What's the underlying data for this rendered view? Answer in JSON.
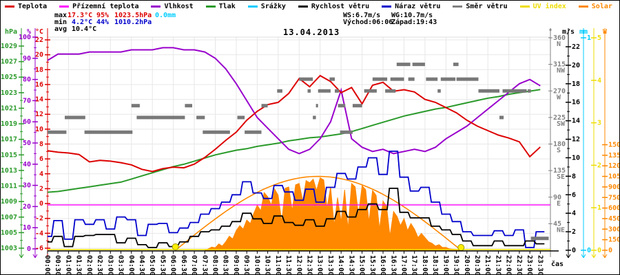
{
  "title": "13.04.2013",
  "xlabel": "čas",
  "legend": {
    "items": [
      {
        "label": "Teplota",
        "color": "#dd0000",
        "text_color": "#000000"
      },
      {
        "label": "Přízemní teplota",
        "color": "#ff00ff",
        "text_color": "#000000"
      },
      {
        "label": "Vlhkost",
        "color": "#9900cc",
        "text_color": "#000000"
      },
      {
        "label": "Tlak",
        "color": "#2a9a2a",
        "text_color": "#000000"
      },
      {
        "label": "Srážky",
        "color": "#00ccff",
        "text_color": "#000000"
      },
      {
        "label": "Rychlost větru",
        "color": "#000000",
        "text_color": "#000000"
      },
      {
        "label": "Náraz větru",
        "color": "#0000cc",
        "text_color": "#000000"
      },
      {
        "label": "Směr větru",
        "color": "#808080",
        "text_color": "#000000"
      },
      {
        "label": "UV index",
        "color": "#eedd00",
        "text_color": "#eedd00"
      },
      {
        "label": "Solar",
        "color": "#ff8800",
        "text_color": "#ff8800"
      }
    ]
  },
  "stats": {
    "max": {
      "label": "max",
      "temp": "17.3°C",
      "humidity": "95%",
      "pressure": "1023.5hPa",
      "rain": "0.0mm"
    },
    "min": {
      "label": "min",
      "temp": "4.2°C",
      "humidity": "44%",
      "pressure": "1010.2hPa"
    },
    "avg": {
      "label": "avg",
      "temp": "10.4°C"
    },
    "wind_max": {
      "ws": "WS:6.7m/s",
      "wg": "WG:10.7m/s"
    },
    "sun": {
      "sunrise": "Východ:06:06",
      "sunset": "Západ:19:43"
    },
    "colors": {
      "max": "#dd0000",
      "min": "#0000cc",
      "rain": "#00ccff",
      "label": "#000000"
    }
  },
  "axes": {
    "pressure": {
      "unit": "hPa",
      "color": "#2a9a2a",
      "ticks": [
        1029,
        1027,
        1025,
        1023,
        1021,
        1019,
        1017,
        1015,
        1013,
        1011,
        1009,
        1007,
        1005,
        1003
      ]
    },
    "humidity": {
      "unit": "%",
      "color": "#9900cc",
      "ticks": [
        100,
        90,
        80,
        70,
        60,
        50,
        40,
        30,
        20,
        10,
        0
      ]
    },
    "temperature": {
      "unit": "°C",
      "color": "#dd0000",
      "ticks": [
        22,
        20,
        18,
        16,
        14,
        12,
        10,
        8,
        6,
        4,
        2,
        0,
        -2,
        -4,
        -6
      ]
    },
    "wind_direction": {
      "unit": "°",
      "color": "#808080",
      "ticks": [
        {
          "deg": 360,
          "label": "N"
        },
        {
          "deg": 315,
          "label": "NW"
        },
        {
          "deg": 270,
          "label": "W"
        },
        {
          "deg": 225,
          "label": "SW"
        },
        {
          "deg": 180,
          "label": "S"
        },
        {
          "deg": 135,
          "label": "SE"
        },
        {
          "deg": 90,
          "label": "E"
        },
        {
          "deg": 45,
          "label": "NE"
        }
      ]
    },
    "wind_speed": {
      "unit": "m/s",
      "color": "#000000",
      "ticks": [
        22,
        20,
        18,
        16,
        14,
        12,
        10,
        8,
        6,
        4,
        2,
        0
      ]
    },
    "rain": {
      "unit": "mm",
      "color": "#00ccff",
      "ticks": [
        1,
        0
      ]
    },
    "uv": {
      "unit": "",
      "color": "#eedd00",
      "ticks": [
        5,
        4,
        3,
        2,
        1,
        0
      ]
    },
    "solar": {
      "unit": "W",
      "color": "#ff8800",
      "ticks": [
        1500,
        1350,
        1200,
        1050,
        900,
        750,
        600,
        450,
        300,
        150,
        0
      ]
    }
  },
  "chart_data": {
    "type": "line",
    "title": "13.04.2013",
    "xlabel": "čas",
    "x_step_h": 0.5,
    "x_ticks": [
      "00:00",
      "00:30",
      "01:00",
      "01:30",
      "02:00",
      "02:30",
      "03:00",
      "03:30",
      "04:00",
      "04:30",
      "05:00",
      "05:30",
      "06:00",
      "06:30",
      "07:00",
      "07:30",
      "08:00",
      "08:30",
      "09:00",
      "09:30",
      "10:00",
      "10:30",
      "11:00",
      "11:30",
      "12:00",
      "12:30",
      "13:00",
      "13:30",
      "14:00",
      "14:30",
      "15:00",
      "15:30",
      "16:00",
      "16:30",
      "17:00",
      "17:30",
      "18:00",
      "18:30",
      "19:00",
      "19:30",
      "20:00",
      "20:30",
      "21:00",
      "21:30",
      "22:00",
      "22:30",
      "23:00",
      "23:30"
    ],
    "series": [
      {
        "name": "Teplota",
        "unit": "°C",
        "axis": "temperature",
        "color": "#dd0000",
        "values": [
          7.1,
          6.9,
          6.8,
          6.6,
          5.6,
          5.8,
          5.7,
          5.5,
          5.2,
          4.6,
          4.3,
          4.7,
          4.9,
          4.8,
          5.3,
          6.2,
          7.3,
          8.5,
          9.6,
          11.2,
          12.4,
          13.3,
          13.6,
          14.8,
          16.8,
          15.7,
          17.2,
          16.4,
          14.9,
          15.6,
          13.4,
          15.9,
          16.3,
          15.1,
          15.3,
          15.0,
          14.0,
          13.6,
          12.9,
          12.2,
          11.2,
          10.4,
          9.8,
          9.2,
          8.8,
          8.3,
          6.3,
          7.6
        ]
      },
      {
        "name": "Přízemní teplota",
        "unit": "°C",
        "axis": "temperature",
        "color": "#ff00ff",
        "values_constant": 0.0
      },
      {
        "name": "Vlhkost",
        "unit": "%",
        "axis": "humidity",
        "color": "#9900cc",
        "values": [
          89,
          92,
          92,
          92,
          93,
          93,
          93,
          93,
          94,
          94,
          94,
          95,
          95,
          94,
          94,
          93,
          90,
          85,
          78,
          70,
          62,
          57,
          52,
          47,
          45,
          47,
          52,
          60,
          75,
          52,
          48,
          46,
          47,
          45,
          46,
          47,
          46,
          48,
          52,
          55,
          58,
          62,
          66,
          70,
          74,
          78,
          80,
          77
        ]
      },
      {
        "name": "Tlak",
        "unit": "hPa",
        "axis": "pressure",
        "color": "#2a9a2a",
        "values": [
          1010.2,
          1010.3,
          1010.5,
          1010.7,
          1010.9,
          1011.1,
          1011.3,
          1011.5,
          1011.9,
          1012.3,
          1012.7,
          1013.1,
          1013.5,
          1013.8,
          1014.2,
          1014.6,
          1015.0,
          1015.3,
          1015.6,
          1015.8,
          1016.1,
          1016.3,
          1016.5,
          1016.8,
          1017.0,
          1017.2,
          1017.3,
          1017.5,
          1017.7,
          1018.0,
          1018.4,
          1018.8,
          1019.2,
          1019.6,
          1020.0,
          1020.3,
          1020.6,
          1020.9,
          1021.1,
          1021.4,
          1021.7,
          1022.0,
          1022.3,
          1022.5,
          1022.8,
          1023.0,
          1023.2,
          1023.4
        ]
      },
      {
        "name": "Srážky",
        "unit": "mm",
        "axis": "rain",
        "color": "#00ccff",
        "values_constant": 0.0
      },
      {
        "name": "Rychlost větru",
        "unit": "m/s",
        "axis": "wind_speed",
        "color": "#000000",
        "values": [
          0.9,
          1.5,
          0.4,
          1.5,
          1.6,
          1.7,
          1.7,
          0.8,
          1.3,
          0.6,
          0.3,
          0.8,
          0.4,
          0.9,
          1.5,
          2.0,
          2.2,
          2.6,
          3.1,
          4.0,
          3.4,
          2.9,
          3.7,
          3.0,
          2.7,
          3.3,
          2.6,
          3.4,
          4.2,
          3.6,
          4.4,
          5.0,
          4.4,
          6.7,
          4.1,
          3.5,
          3.5,
          2.6,
          2.2,
          1.7,
          1.0,
          0.5,
          0.5,
          1.0,
          0.5,
          0.5,
          1.0,
          0.7
        ]
      },
      {
        "name": "Náraz větru",
        "unit": "m/s",
        "axis": "wind_speed",
        "color": "#0000cc",
        "values": [
          1.5,
          3.2,
          1.2,
          3.3,
          2.8,
          3.3,
          2.3,
          3.6,
          3.3,
          1.6,
          2.8,
          2.9,
          1.9,
          2.4,
          3.0,
          3.9,
          4.5,
          5.2,
          6.0,
          7.4,
          6.2,
          5.6,
          7.0,
          6.3,
          5.4,
          6.6,
          5.2,
          6.8,
          8.3,
          7.7,
          9.0,
          10.0,
          8.2,
          10.7,
          7.9,
          6.4,
          6.8,
          5.2,
          3.9,
          3.1,
          2.0,
          1.6,
          1.6,
          2.1,
          1.6,
          2.2,
          0.3,
          2.0
        ]
      },
      {
        "name": "UV index",
        "unit": "",
        "axis": "uv",
        "color": "#eedd00",
        "values_constant": 0.0
      },
      {
        "name": "Solar",
        "unit": "W",
        "axis": "solar",
        "color": "#ff8800",
        "points_10min": [
          [
            7.5,
            0
          ],
          [
            7.67,
            20
          ],
          [
            7.83,
            45
          ],
          [
            8,
            35
          ],
          [
            8.17,
            90
          ],
          [
            8.33,
            60
          ],
          [
            8.5,
            120
          ],
          [
            8.67,
            200
          ],
          [
            8.83,
            160
          ],
          [
            9,
            280
          ],
          [
            9.17,
            350
          ],
          [
            9.33,
            300
          ],
          [
            9.5,
            430
          ],
          [
            9.67,
            380
          ],
          [
            9.83,
            520
          ],
          [
            10,
            640
          ],
          [
            10.17,
            560
          ],
          [
            10.33,
            820
          ],
          [
            10.5,
            760
          ],
          [
            10.67,
            640
          ],
          [
            10.83,
            870
          ],
          [
            11,
            780
          ],
          [
            11.17,
            400
          ],
          [
            11.33,
            880
          ],
          [
            11.5,
            900
          ],
          [
            11.67,
            560
          ],
          [
            11.83,
            930
          ],
          [
            12,
            950
          ],
          [
            12.17,
            700
          ],
          [
            12.33,
            990
          ],
          [
            12.5,
            960
          ],
          [
            12.67,
            1010
          ],
          [
            12.83,
            850
          ],
          [
            13,
            1030
          ],
          [
            13.17,
            1000
          ],
          [
            13.33,
            600
          ],
          [
            13.5,
            900
          ],
          [
            13.67,
            350
          ],
          [
            13.83,
            750
          ],
          [
            14,
            400
          ],
          [
            14.17,
            860
          ],
          [
            14.33,
            300
          ],
          [
            14.5,
            950
          ],
          [
            14.67,
            900
          ],
          [
            14.83,
            500
          ],
          [
            15,
            920
          ],
          [
            15.17,
            860
          ],
          [
            15.33,
            400
          ],
          [
            15.5,
            850
          ],
          [
            15.67,
            780
          ],
          [
            15.83,
            300
          ],
          [
            16,
            700
          ],
          [
            16.17,
            620
          ],
          [
            16.33,
            200
          ],
          [
            16.5,
            550
          ],
          [
            16.67,
            480
          ],
          [
            16.83,
            350
          ],
          [
            17,
            450
          ],
          [
            17.17,
            280
          ],
          [
            17.33,
            380
          ],
          [
            17.5,
            300
          ],
          [
            17.67,
            180
          ],
          [
            17.83,
            240
          ],
          [
            18,
            180
          ],
          [
            18.17,
            120
          ],
          [
            18.33,
            100
          ],
          [
            18.5,
            60
          ],
          [
            18.67,
            80
          ],
          [
            18.83,
            40
          ],
          [
            19,
            40
          ],
          [
            19.17,
            20
          ],
          [
            19.33,
            15
          ],
          [
            19.5,
            10
          ],
          [
            19.67,
            5
          ],
          [
            19.83,
            0
          ]
        ]
      }
    ],
    "wind_direction_segments": [
      [
        0,
        0.9,
        200
      ],
      [
        0.82,
        1.8,
        225
      ],
      [
        1.76,
        4.05,
        200
      ],
      [
        4.0,
        4.4,
        245
      ],
      [
        4.25,
        6.55,
        225
      ],
      [
        6.55,
        6.9,
        245
      ],
      [
        7.1,
        7.5,
        225
      ],
      [
        7.4,
        8.7,
        200
      ],
      [
        9.05,
        9.4,
        225
      ],
      [
        9.4,
        10.2,
        200
      ],
      [
        10.2,
        10.5,
        245
      ],
      [
        10.95,
        11.2,
        270
      ],
      [
        12.0,
        12.65,
        290
      ],
      [
        12.4,
        12.55,
        270
      ],
      [
        12.65,
        12.8,
        225
      ],
      [
        12.8,
        12.9,
        245
      ],
      [
        12.9,
        13.5,
        270
      ],
      [
        13.45,
        13.7,
        290
      ],
      [
        13.7,
        13.9,
        270
      ],
      [
        13.85,
        14.2,
        245
      ],
      [
        13.95,
        14.55,
        200
      ],
      [
        14.55,
        15.0,
        245
      ],
      [
        15.1,
        15.7,
        270
      ],
      [
        15.5,
        16.2,
        290
      ],
      [
        16.1,
        16.6,
        270
      ],
      [
        16.35,
        17.0,
        290
      ],
      [
        16.65,
        17.3,
        315
      ],
      [
        17.2,
        17.5,
        290
      ],
      [
        17.4,
        18.0,
        315
      ],
      [
        18.05,
        18.6,
        290
      ],
      [
        18.6,
        18.75,
        270
      ],
      [
        18.75,
        19.45,
        290
      ],
      [
        19.35,
        19.6,
        315
      ],
      [
        19.5,
        20.55,
        290
      ],
      [
        20.55,
        21.55,
        270
      ],
      [
        21.55,
        21.75,
        225
      ],
      [
        21.7,
        22.85,
        270
      ],
      [
        22.9,
        23.05,
        270
      ],
      [
        23.05,
        23.9,
        20
      ]
    ],
    "solar_potential_curve": {
      "start": "06:06",
      "end": "19:43",
      "start_h": 6.1,
      "end_h": 19.72,
      "peak_w": 1050,
      "color": "#ff8800"
    },
    "sun_markers": {
      "sunrise": "06:06",
      "sunset": "19:43",
      "sunrise_h": 6.1,
      "sunset_h": 19.72,
      "color": "#ffee00"
    }
  }
}
